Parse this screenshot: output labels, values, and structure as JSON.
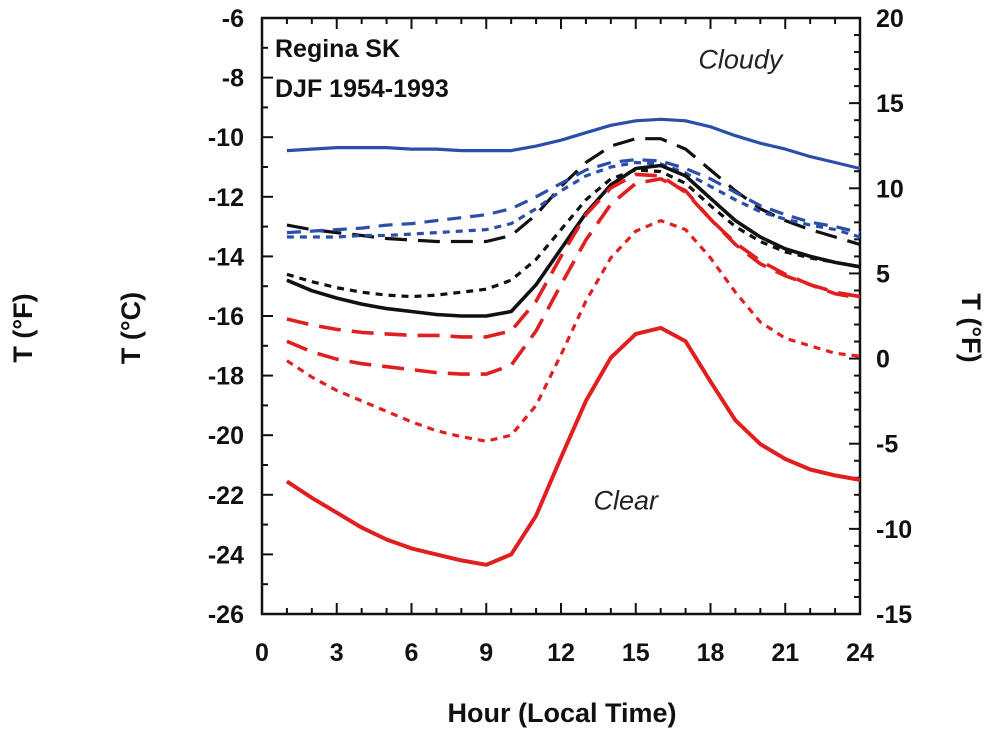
{
  "chart_data": {
    "type": "line",
    "title_lines": [
      "Regina SK",
      "DJF 1954-1993"
    ],
    "xlabel": "Hour (Local Time)",
    "ylabel_left": "T (°C)",
    "ylabel_right": "T (°F)",
    "ylabel_outer": "T (°F)",
    "xlim": [
      0,
      24
    ],
    "ylim": [
      -26,
      -6
    ],
    "ylim_right": [
      -15,
      20
    ],
    "x_ticks": [
      0,
      3,
      6,
      9,
      12,
      15,
      18,
      21,
      24
    ],
    "y_ticks": [
      -26,
      -24,
      -22,
      -20,
      -18,
      -16,
      -14,
      -12,
      -10,
      -8,
      -6
    ],
    "y_ticks_right": [
      -15,
      -10,
      -5,
      0,
      5,
      10,
      15,
      20
    ],
    "annotations": [
      {
        "text": "Cloudy",
        "x": 19.2,
        "y": -7.7
      },
      {
        "text": "Clear",
        "x": 14.6,
        "y": -22.5
      }
    ],
    "grid": false,
    "legend": "none",
    "series": [
      {
        "color": "#2a4fa8",
        "style": "solid",
        "width": 3.2,
        "x": [
          1,
          2,
          3,
          4,
          5,
          6,
          7,
          8,
          9,
          10,
          11,
          12,
          13,
          14,
          15,
          16,
          17,
          18,
          19,
          20,
          21,
          22,
          23,
          24
        ],
        "y": [
          -10.45,
          -10.4,
          -10.35,
          -10.35,
          -10.35,
          -10.4,
          -10.4,
          -10.45,
          -10.45,
          -10.45,
          -10.3,
          -10.1,
          -9.85,
          -9.6,
          -9.45,
          -9.4,
          -9.45,
          -9.65,
          -9.95,
          -10.2,
          -10.4,
          -10.65,
          -10.85,
          -11.05
        ]
      },
      {
        "color": "#111111",
        "style": "longdash",
        "width": 3.2,
        "x": [
          1,
          2,
          3,
          4,
          5,
          6,
          7,
          8,
          9,
          10,
          11,
          12,
          13,
          14,
          15,
          16,
          17,
          18,
          19,
          20,
          21,
          22,
          23,
          24
        ],
        "y": [
          -12.95,
          -13.1,
          -13.2,
          -13.3,
          -13.4,
          -13.45,
          -13.5,
          -13.5,
          -13.5,
          -13.3,
          -12.6,
          -11.65,
          -10.85,
          -10.3,
          -10.05,
          -10.05,
          -10.4,
          -11.1,
          -11.8,
          -12.4,
          -12.8,
          -13.1,
          -13.35,
          -13.6
        ]
      },
      {
        "color": "#2a4fa8",
        "style": "dash",
        "width": 3.2,
        "x": [
          1,
          2,
          3,
          4,
          5,
          6,
          7,
          8,
          9,
          10,
          11,
          12,
          13,
          14,
          15,
          16,
          17,
          18,
          19,
          20,
          21,
          22,
          23,
          24
        ],
        "y": [
          -13.2,
          -13.15,
          -13.1,
          -13.05,
          -12.95,
          -12.9,
          -12.8,
          -12.7,
          -12.6,
          -12.4,
          -12.0,
          -11.55,
          -11.1,
          -10.85,
          -10.75,
          -10.8,
          -11.05,
          -11.4,
          -11.85,
          -12.3,
          -12.6,
          -12.85,
          -13.0,
          -13.2
        ]
      },
      {
        "color": "#2a4fa8",
        "style": "dot",
        "width": 3.2,
        "x": [
          1,
          2,
          3,
          4,
          5,
          6,
          7,
          8,
          9,
          10,
          11,
          12,
          13,
          14,
          15,
          16,
          17,
          18,
          19,
          20,
          21,
          22,
          23,
          24
        ],
        "y": [
          -13.35,
          -13.35,
          -13.35,
          -13.3,
          -13.3,
          -13.25,
          -13.2,
          -13.15,
          -13.1,
          -12.9,
          -12.4,
          -11.8,
          -11.3,
          -11.0,
          -10.85,
          -10.9,
          -11.2,
          -11.65,
          -12.1,
          -12.5,
          -12.75,
          -12.95,
          -13.1,
          -13.35
        ]
      },
      {
        "color": "#111111",
        "style": "dot",
        "width": 3.2,
        "x": [
          1,
          2,
          3,
          4,
          5,
          6,
          7,
          8,
          9,
          10,
          11,
          12,
          13,
          14,
          15,
          16,
          17,
          18,
          19,
          20,
          21,
          22,
          23,
          24
        ],
        "y": [
          -14.6,
          -14.85,
          -15.05,
          -15.2,
          -15.3,
          -15.35,
          -15.3,
          -15.2,
          -15.1,
          -14.8,
          -14.1,
          -13.1,
          -12.1,
          -11.4,
          -11.1,
          -11.15,
          -11.55,
          -12.3,
          -13.0,
          -13.5,
          -13.85,
          -14.05,
          -14.2,
          -14.35
        ]
      },
      {
        "color": "#111111",
        "style": "solid",
        "width": 3.6,
        "x": [
          1,
          2,
          3,
          4,
          5,
          6,
          7,
          8,
          9,
          10,
          11,
          12,
          13,
          14,
          15,
          16,
          17,
          18,
          19,
          20,
          21,
          22,
          23,
          24
        ],
        "y": [
          -14.8,
          -15.15,
          -15.4,
          -15.6,
          -15.75,
          -15.85,
          -15.95,
          -16.0,
          -16.0,
          -15.85,
          -14.95,
          -13.75,
          -12.55,
          -11.6,
          -11.05,
          -10.95,
          -11.3,
          -12.05,
          -12.8,
          -13.35,
          -13.75,
          -14.0,
          -14.2,
          -14.35
        ]
      },
      {
        "color": "#e02020",
        "style": "longdash",
        "width": 3.6,
        "x": [
          1,
          2,
          3,
          4,
          5,
          6,
          7,
          8,
          9,
          10,
          11,
          12,
          13,
          14,
          15,
          16,
          17,
          18,
          19,
          20,
          21,
          22,
          23,
          24
        ],
        "y": [
          -16.1,
          -16.3,
          -16.45,
          -16.55,
          -16.6,
          -16.65,
          -16.65,
          -16.7,
          -16.7,
          -16.5,
          -15.5,
          -14.0,
          -12.6,
          -11.7,
          -11.25,
          -11.3,
          -11.85,
          -12.75,
          -13.55,
          -14.15,
          -14.6,
          -14.95,
          -15.25,
          -15.4
        ]
      },
      {
        "color": "#e02020",
        "style": "longdash",
        "width": 3.6,
        "x": [
          1,
          2,
          3,
          4,
          5,
          6,
          7,
          8,
          9,
          10,
          11,
          12,
          13,
          14,
          15,
          16,
          17,
          18,
          19,
          20,
          21,
          22,
          23,
          24
        ],
        "y": [
          -16.85,
          -17.2,
          -17.45,
          -17.6,
          -17.7,
          -17.8,
          -17.9,
          -17.95,
          -17.95,
          -17.65,
          -16.5,
          -14.95,
          -13.45,
          -12.25,
          -11.55,
          -11.4,
          -11.8,
          -12.75,
          -13.6,
          -14.25,
          -14.65,
          -14.95,
          -15.2,
          -15.35
        ]
      },
      {
        "color": "#e02020",
        "style": "dot",
        "width": 3.2,
        "x": [
          1,
          2,
          3,
          4,
          5,
          6,
          7,
          8,
          9,
          10,
          11,
          12,
          13,
          14,
          15,
          16,
          17,
          18,
          19,
          20,
          21,
          22,
          23,
          24
        ],
        "y": [
          -17.5,
          -18.05,
          -18.5,
          -18.85,
          -19.2,
          -19.55,
          -19.85,
          -20.05,
          -20.2,
          -20.0,
          -19.0,
          -17.3,
          -15.5,
          -14.05,
          -13.15,
          -12.8,
          -13.1,
          -14.05,
          -15.2,
          -16.2,
          -16.75,
          -17.0,
          -17.25,
          -17.35
        ]
      },
      {
        "color": "#e02020",
        "style": "solid",
        "width": 4,
        "x": [
          1,
          2,
          3,
          4,
          5,
          6,
          7,
          8,
          9,
          10,
          11,
          12,
          13,
          14,
          15,
          16,
          17,
          18,
          19,
          20,
          21,
          22,
          23,
          24
        ],
        "y": [
          -21.55,
          -22.1,
          -22.6,
          -23.1,
          -23.5,
          -23.8,
          -24.0,
          -24.2,
          -24.35,
          -24.0,
          -22.7,
          -20.75,
          -18.85,
          -17.4,
          -16.6,
          -16.4,
          -16.85,
          -18.2,
          -19.5,
          -20.3,
          -20.8,
          -21.15,
          -21.35,
          -21.5
        ]
      }
    ]
  }
}
